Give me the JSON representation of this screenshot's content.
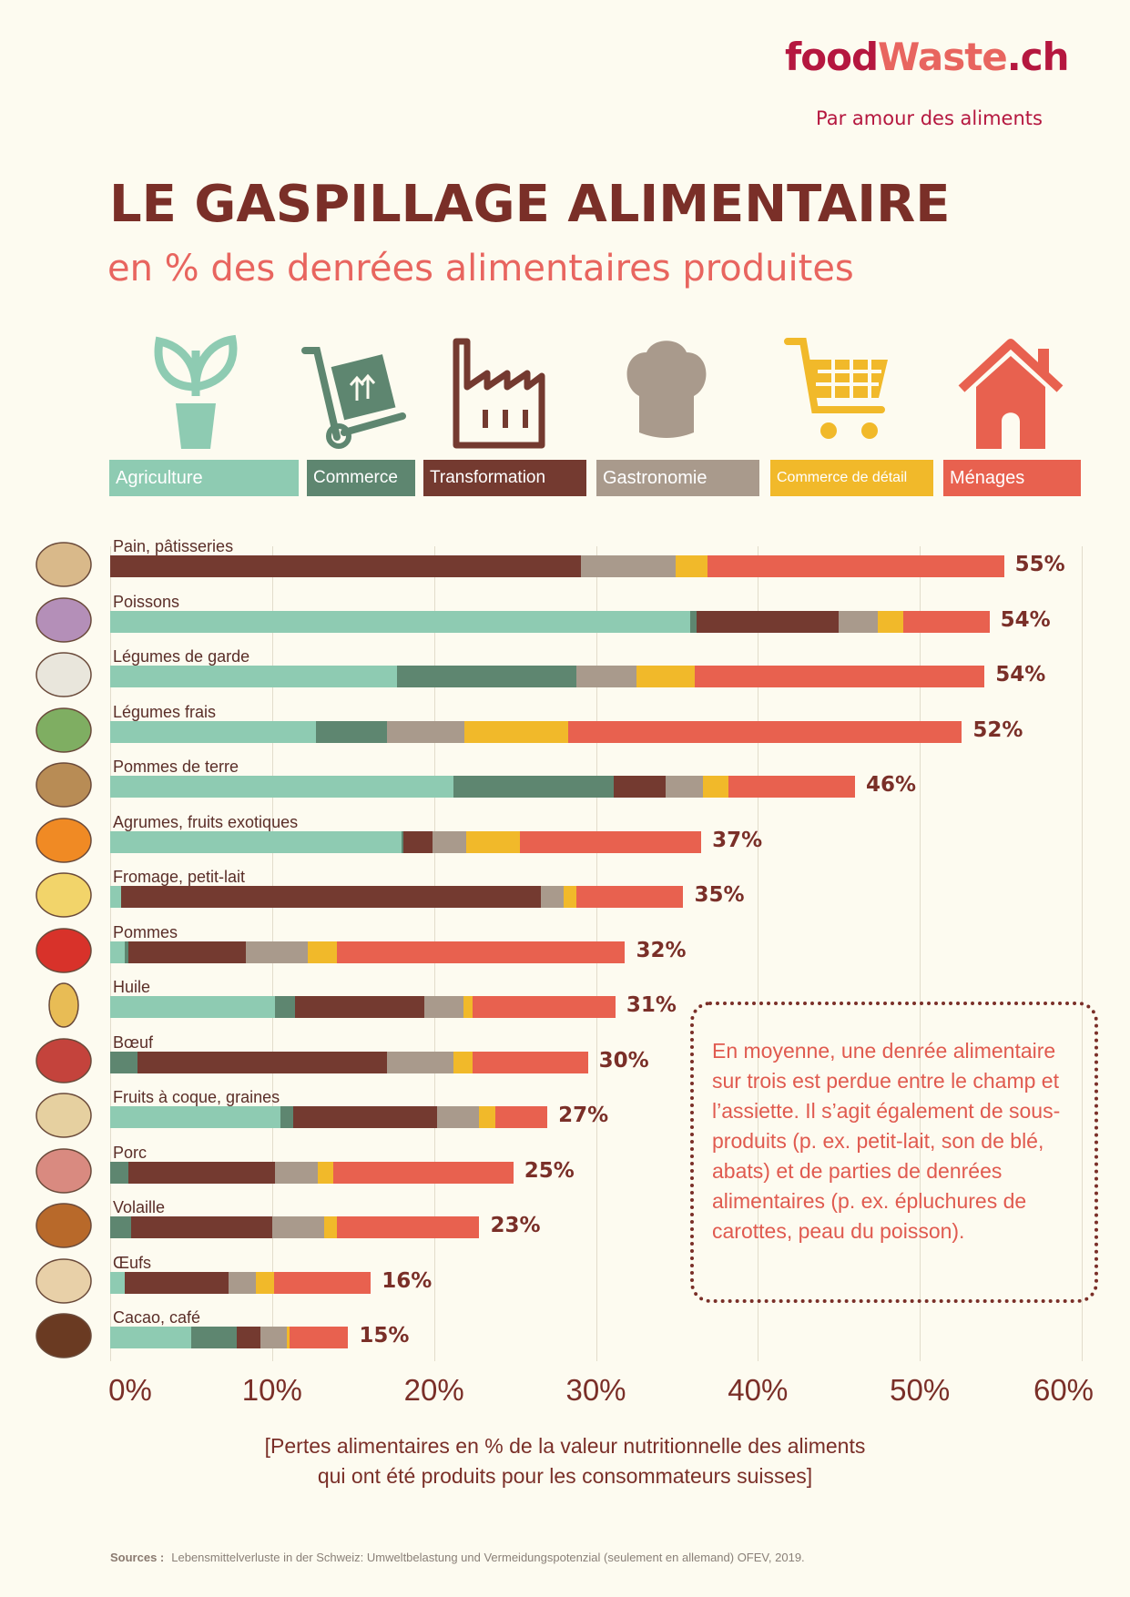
{
  "header": {
    "logo_part1": "food",
    "logo_part2": "Waste",
    "logo_part3": ".ch",
    "tagline": "Par amour des aliments",
    "title": "LE GASPILLAGE ALIMENTAIRE",
    "subtitle": "en % des denrées alimentaires produites"
  },
  "colors": {
    "agriculture": "#8ecbb2",
    "commerce": "#5e8670",
    "transformation": "#743a30",
    "gastronomie": "#a99a8c",
    "commerce_detail": "#f1b92a",
    "menages": "#e8614f"
  },
  "chart_data": {
    "type": "bar",
    "orientation": "horizontal-stacked",
    "title": "LE GASPILLAGE ALIMENTAIRE",
    "subtitle": "en % des denrées alimentaires produites",
    "xlabel": "[Pertes alimentaires en % de la valeur nutritionnelle des aliments qui ont été produits pour les consommateurs suisses]",
    "xlabel_lines": [
      "[Pertes alimentaires en % de la valeur nutritionnelle des aliments",
      "qui ont été produits pour les consommateurs suisses]"
    ],
    "xlim": [
      0,
      60
    ],
    "xticks": [
      "0%",
      "10%",
      "20%",
      "30%",
      "40%",
      "50%",
      "60%"
    ],
    "grid": true,
    "legend_position": "top",
    "categories": [
      "Pain, pâtisseries",
      "Poissons",
      "Légumes de garde",
      "Légumes frais",
      "Pommes de terre",
      "Agrumes, fruits exotiques",
      "Fromage, petit-lait",
      "Pommes",
      "Huile",
      "Bœuf",
      "Fruits à coque, graines",
      "Porc",
      "Volaille",
      "Œufs",
      "Cacao, café"
    ],
    "totals": [
      "55%",
      "54%",
      "54%",
      "52%",
      "46%",
      "37%",
      "35%",
      "32%",
      "31%",
      "30%",
      "27%",
      "25%",
      "23%",
      "16%",
      "15%"
    ],
    "series": [
      {
        "name": "Agriculture",
        "key": "agriculture",
        "values": [
          0,
          35.8,
          17.7,
          12.7,
          21.2,
          18.0,
          0.7,
          0.9,
          10.2,
          0,
          10.5,
          0,
          0,
          0.9,
          5.0
        ]
      },
      {
        "name": "Commerce",
        "key": "commerce",
        "values": [
          0,
          0.4,
          11.1,
          4.4,
          9.9,
          0.1,
          0,
          0.2,
          1.2,
          1.7,
          0.8,
          1.1,
          1.3,
          0,
          2.8
        ]
      },
      {
        "name": "Transformation",
        "key": "transformation",
        "values": [
          29.1,
          8.8,
          0,
          0,
          3.2,
          1.8,
          25.9,
          7.3,
          8.0,
          15.4,
          8.9,
          9.1,
          8.7,
          6.4,
          1.5
        ]
      },
      {
        "name": "Gastronomie",
        "key": "gastronomie",
        "values": [
          5.8,
          2.4,
          3.7,
          4.8,
          2.3,
          2.1,
          1.4,
          3.8,
          2.4,
          4.1,
          2.6,
          2.6,
          3.2,
          1.7,
          1.6
        ]
      },
      {
        "name": "Commerce de détail",
        "key": "commerce_detail",
        "values": [
          2.0,
          1.6,
          3.6,
          6.4,
          1.6,
          3.3,
          0.8,
          1.8,
          0.6,
          1.2,
          1.0,
          1.0,
          0.8,
          1.1,
          0.2
        ]
      },
      {
        "name": "Ménages",
        "key": "menages",
        "values": [
          18.3,
          5.3,
          17.9,
          24.3,
          7.8,
          11.2,
          6.6,
          17.8,
          8.8,
          7.1,
          3.2,
          11.1,
          8.8,
          6.0,
          3.6
        ]
      }
    ]
  },
  "food_icons": [
    "bread-icon",
    "fish-icon",
    "cauliflower-icon",
    "lettuce-icon",
    "potato-icon",
    "citrus-icon",
    "cheese-icon",
    "apple-icon",
    "oil-drop-icon",
    "steak-icon",
    "peanut-icon",
    "sausage-icon",
    "chicken-leg-icon",
    "egg-icon",
    "coffee-bean-icon"
  ],
  "note": "En moyenne, une denrée alimentaire sur trois est perdue entre le champ et l’assiette. Il s’agit également de sous-produits (p. ex. petit-lait, son de blé, abats) et de parties de denrées alimentaires (p. ex. épluchures de carottes, peau du poisson).",
  "sources": {
    "label": "Sources :",
    "text": "Lebensmittelverluste in der Schweiz: Umweltbelastung und Vermeidungspotenzial (seulement en allemand) OFEV, 2019."
  }
}
